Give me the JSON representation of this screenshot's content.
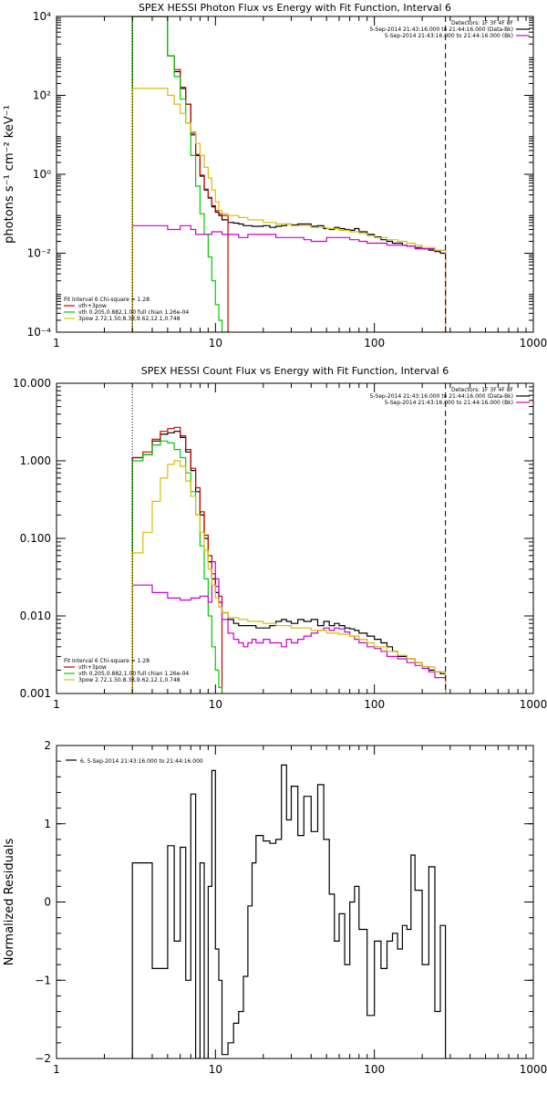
{
  "chart_data": [
    {
      "id": "photon",
      "type": "line",
      "title": "SPEX HESSI Photon Flux vs Energy with Fit Function, Interval 6",
      "ylabel": "photons s⁻¹ cm⁻² keV⁻¹",
      "xscale": "log",
      "yscale": "log",
      "xlim": [
        1,
        1000
      ],
      "ylim": [
        0.0001,
        10000
      ],
      "xticks": [
        {
          "v": 1,
          "t": "1"
        },
        {
          "v": 10,
          "t": "10"
        },
        {
          "v": 100,
          "t": "100"
        },
        {
          "v": 1000,
          "t": "1000"
        }
      ],
      "yticks": [
        {
          "v": 0.0001,
          "t": "10⁻⁴"
        },
        {
          "v": 0.01,
          "t": "10⁻²"
        },
        {
          "v": 1,
          "t": "10⁰"
        },
        {
          "v": 100,
          "t": "10²"
        },
        {
          "v": 10000,
          "t": "10⁴"
        }
      ],
      "vlines": [
        {
          "x": 3,
          "style": "dotted"
        },
        {
          "x": 280,
          "style": "dashed"
        }
      ],
      "legend_top": {
        "header": "Detectors: 1F 3F 4F 8F",
        "entries": [
          {
            "text": "5-Sep-2014 21:43:16.000 to 21:44:16.000 (Data-Bk)",
            "color": "#000000"
          },
          {
            "text": "5-Sep-2014 21:43:16.000 to 21:44:16.000 (Bk)",
            "color": "#cc00cc"
          }
        ]
      },
      "legend_bottom": {
        "header": "Fit Interval 6   Chi-square = 1.28",
        "entries": [
          {
            "text": "vth+3pow",
            "color": "#cc0000"
          },
          {
            "text": "vth 0.205,0.882,1.00  full chian 1.26e-04",
            "color": "#00cc00"
          },
          {
            "text": "3pow 2.72,1.50,8.38,9.62,12.1,0.748",
            "color": "#cccc00"
          }
        ]
      },
      "series": [
        {
          "color": "#000000",
          "edges": [
            3,
            4,
            5,
            5.5,
            6,
            6.5,
            7,
            7.5,
            8,
            8.5,
            9,
            9.5,
            10,
            10.5,
            11,
            12,
            13,
            14,
            15,
            16,
            17,
            18,
            20,
            22,
            24,
            26,
            28,
            30,
            33,
            36,
            40,
            44,
            48,
            52,
            56,
            60,
            65,
            70,
            75,
            80,
            90,
            100,
            110,
            120,
            130,
            140,
            150,
            160,
            170,
            180,
            200,
            220,
            240,
            260,
            280
          ],
          "values": [
            10000,
            10000,
            1000,
            400,
            150,
            60,
            10,
            3,
            0.9,
            0.4,
            0.25,
            0.15,
            0.11,
            0.09,
            0.07,
            0.06,
            0.058,
            0.055,
            0.05,
            0.05,
            0.048,
            0.048,
            0.05,
            0.045,
            0.048,
            0.05,
            0.055,
            0.052,
            0.055,
            0.055,
            0.048,
            0.05,
            0.042,
            0.04,
            0.045,
            0.042,
            0.04,
            0.038,
            0.042,
            0.035,
            0.03,
            0.026,
            0.022,
            0.02,
            0.018,
            0.018,
            0.016,
            0.015,
            0.015,
            0.014,
            0.013,
            0.012,
            0.011,
            0.01
          ]
        },
        {
          "color": "#cc0000",
          "edges": [
            3,
            4,
            5,
            5.5,
            6,
            6.5,
            7,
            7.5,
            8,
            8.5,
            9,
            9.5,
            10,
            10.5,
            11,
            12
          ],
          "values": [
            10000,
            10000,
            1000,
            450,
            160,
            60,
            11,
            3.2,
            0.95,
            0.42,
            0.26,
            0.16,
            0.12,
            0.1,
            0.09
          ]
        },
        {
          "color": "#00cc00",
          "edges": [
            3,
            4,
            5,
            5.5,
            6,
            6.5,
            7,
            7.5,
            8,
            8.5,
            9,
            9.5,
            10,
            10.5,
            11,
            12
          ],
          "values": [
            10000,
            10000,
            1000,
            300,
            80,
            20,
            3,
            0.5,
            0.1,
            0.03,
            0.008,
            0.002,
            0.0005,
            0.0002,
            8e-05
          ]
        },
        {
          "color": "#cc00cc",
          "edges": [
            3,
            4,
            5,
            6,
            7,
            7.5,
            8,
            8.5,
            9,
            9.5,
            10,
            11,
            12,
            14,
            16,
            18,
            20,
            24,
            28,
            32,
            36,
            40,
            50,
            60,
            70,
            80,
            90,
            100,
            120,
            140,
            160,
            180,
            200,
            240,
            280
          ],
          "values": [
            0.05,
            0.05,
            0.04,
            0.05,
            0.04,
            0.03,
            0.03,
            0.03,
            0.03,
            0.035,
            0.035,
            0.03,
            0.03,
            0.025,
            0.03,
            0.03,
            0.03,
            0.025,
            0.025,
            0.025,
            0.022,
            0.02,
            0.025,
            0.025,
            0.022,
            0.02,
            0.018,
            0.018,
            0.016,
            0.016,
            0.015,
            0.013,
            0.013,
            0.012
          ]
        },
        {
          "color": "#d4c000",
          "edges": [
            3,
            4,
            5,
            5.5,
            6,
            6.5,
            7,
            7.5,
            8,
            8.5,
            9,
            9.5,
            10,
            10.5,
            11,
            12,
            14,
            16,
            20,
            24,
            30,
            40,
            50,
            60,
            70,
            80,
            90,
            100,
            120,
            140,
            160,
            180,
            200,
            240,
            280
          ],
          "values": [
            150,
            150,
            100,
            60,
            35,
            20,
            12,
            6,
            3,
            1.5,
            0.8,
            0.4,
            0.2,
            0.12,
            0.1,
            0.09,
            0.08,
            0.07,
            0.06,
            0.055,
            0.05,
            0.045,
            0.042,
            0.038,
            0.035,
            0.032,
            0.028,
            0.025,
            0.022,
            0.02,
            0.018,
            0.016,
            0.014,
            0.012
          ]
        }
      ]
    },
    {
      "id": "count",
      "type": "line",
      "title": "SPEX HESSI Count Flux vs Energy with Fit Function, Interval 6",
      "ylabel": "",
      "xscale": "log",
      "yscale": "log",
      "xlim": [
        1,
        1000
      ],
      "ylim": [
        0.001,
        10
      ],
      "xticks": [
        {
          "v": 1,
          "t": "1"
        },
        {
          "v": 10,
          "t": "10"
        },
        {
          "v": 100,
          "t": "100"
        },
        {
          "v": 1000,
          "t": "1000"
        }
      ],
      "yticks": [
        {
          "v": 0.001,
          "t": "0.001"
        },
        {
          "v": 0.01,
          "t": "0.010"
        },
        {
          "v": 0.1,
          "t": "0.100"
        },
        {
          "v": 1,
          "t": "1.000"
        },
        {
          "v": 10,
          "t": "10.000"
        }
      ],
      "vlines": [
        {
          "x": 3,
          "style": "dotted"
        },
        {
          "x": 280,
          "style": "dashed"
        }
      ],
      "legend_top": {
        "header": "Detectors: 1F 3F 4F 8F",
        "entries": [
          {
            "text": "5-Sep-2014 21:43:16.000 to 21:44:16.000 (Data-Bk)",
            "color": "#000000"
          },
          {
            "text": "5-Sep-2014 21:43:16.000 to 21:44:16.000 (Bk)",
            "color": "#cc00cc"
          }
        ]
      },
      "legend_bottom": {
        "header": "Fit Interval 6   Chi-square = 1.28",
        "entries": [
          {
            "text": "vth+3pow",
            "color": "#cc0000"
          },
          {
            "text": "vth 0.205,0.882,1.00  full chian 1.26e-04",
            "color": "#00cc00"
          },
          {
            "text": "3pow 2.72,1.50,8.38,9.62,12.1,0.748",
            "color": "#cccc00"
          }
        ]
      },
      "series": [
        {
          "color": "#000000",
          "edges": [
            3,
            3.5,
            4,
            4.5,
            5,
            5.5,
            6,
            6.5,
            7,
            7.5,
            8,
            8.5,
            9,
            9.5,
            10,
            10.5,
            11,
            12,
            13,
            14,
            16,
            18,
            20,
            22,
            24,
            26,
            28,
            30,
            33,
            36,
            40,
            44,
            48,
            52,
            56,
            60,
            65,
            70,
            75,
            80,
            90,
            100,
            110,
            120,
            130,
            140,
            160,
            180,
            200,
            220,
            240,
            260,
            280
          ],
          "values": [
            1.1,
            1.2,
            1.8,
            2.2,
            2.3,
            2.4,
            2.0,
            1.3,
            0.75,
            0.4,
            0.2,
            0.1,
            0.05,
            0.03,
            0.02,
            0.015,
            0.011,
            0.009,
            0.008,
            0.0075,
            0.0075,
            0.007,
            0.007,
            0.0075,
            0.0085,
            0.009,
            0.0085,
            0.008,
            0.009,
            0.0085,
            0.009,
            0.0075,
            0.0085,
            0.0075,
            0.008,
            0.0075,
            0.007,
            0.0068,
            0.0065,
            0.006,
            0.0055,
            0.005,
            0.0045,
            0.004,
            0.0035,
            0.003,
            0.0028,
            0.0025,
            0.0022,
            0.002,
            0.0019,
            0.0018
          ]
        },
        {
          "color": "#cc0000",
          "edges": [
            3,
            3.5,
            4,
            4.5,
            5,
            5.5,
            6,
            6.5,
            7,
            7.5,
            8,
            8.5,
            9,
            9.5,
            10,
            10.5,
            11
          ],
          "values": [
            1.1,
            1.3,
            1.9,
            2.4,
            2.6,
            2.7,
            2.1,
            1.4,
            0.8,
            0.45,
            0.22,
            0.11,
            0.06,
            0.035,
            0.024,
            0.018
          ]
        },
        {
          "color": "#00cc00",
          "edges": [
            3,
            3.5,
            4,
            4.5,
            5,
            5.5,
            6,
            6.5,
            7,
            7.5,
            8,
            8.5,
            9,
            9.5,
            10,
            10.5,
            11
          ],
          "values": [
            1.0,
            1.2,
            1.6,
            1.8,
            1.7,
            1.4,
            1.1,
            0.7,
            0.4,
            0.2,
            0.08,
            0.03,
            0.01,
            0.004,
            0.002,
            0.0012
          ]
        },
        {
          "color": "#cc00cc",
          "edges": [
            3,
            4,
            5,
            6,
            7,
            8,
            9,
            9.5,
            10,
            10.5,
            11,
            12,
            13,
            14,
            15,
            16,
            17,
            18,
            20,
            22,
            24,
            26,
            28,
            30,
            33,
            36,
            40,
            44,
            48,
            52,
            56,
            60,
            65,
            70,
            75,
            80,
            90,
            100,
            110,
            120,
            140,
            160,
            180,
            200,
            220,
            240,
            280
          ],
          "values": [
            0.025,
            0.02,
            0.017,
            0.016,
            0.017,
            0.018,
            0.015,
            0.05,
            0.03,
            0.015,
            0.009,
            0.006,
            0.005,
            0.0045,
            0.004,
            0.0045,
            0.005,
            0.0045,
            0.005,
            0.0045,
            0.0045,
            0.004,
            0.005,
            0.0045,
            0.005,
            0.0055,
            0.006,
            0.0065,
            0.007,
            0.0065,
            0.007,
            0.0068,
            0.0062,
            0.0055,
            0.005,
            0.0045,
            0.004,
            0.0038,
            0.0035,
            0.003,
            0.0028,
            0.0025,
            0.0023,
            0.0021,
            0.0019,
            0.0016
          ]
        },
        {
          "color": "#d4c000",
          "edges": [
            3,
            3.5,
            4,
            4.5,
            5,
            5.5,
            6,
            6.5,
            7,
            7.5,
            8,
            8.5,
            9,
            9.5,
            10,
            10.5,
            11,
            12,
            14,
            16,
            20,
            24,
            30,
            40,
            50,
            60,
            70,
            80,
            90,
            100,
            120,
            140,
            160,
            180,
            200,
            240,
            280
          ],
          "values": [
            0.065,
            0.12,
            0.3,
            0.6,
            0.9,
            1.0,
            0.85,
            0.55,
            0.35,
            0.2,
            0.12,
            0.07,
            0.04,
            0.025,
            0.017,
            0.013,
            0.011,
            0.0095,
            0.009,
            0.0085,
            0.008,
            0.0075,
            0.007,
            0.0065,
            0.006,
            0.0058,
            0.0055,
            0.005,
            0.0045,
            0.004,
            0.0035,
            0.0031,
            0.0028,
            0.0025,
            0.0022,
            0.0019
          ]
        }
      ]
    },
    {
      "id": "resid",
      "type": "line",
      "title": "",
      "ylabel": "Normalized Residuals",
      "xscale": "log",
      "yscale": "linear",
      "xlim": [
        1,
        1000
      ],
      "ylim": [
        -2,
        2
      ],
      "xticks": [
        {
          "v": 1,
          "t": "1"
        },
        {
          "v": 10,
          "t": "10"
        },
        {
          "v": 100,
          "t": "100"
        },
        {
          "v": 1000,
          "t": "1000"
        }
      ],
      "yticks": [
        {
          "v": -2,
          "t": "−2"
        },
        {
          "v": -1,
          "t": "−1"
        },
        {
          "v": 0,
          "t": "0"
        },
        {
          "v": 1,
          "t": "1"
        },
        {
          "v": 2,
          "t": "2"
        }
      ],
      "vlines": [],
      "legend_top": {
        "header": "",
        "entries": [
          {
            "text": "6, 5-Sep-2014 21:43:16.000 to 21:44:16.000",
            "color": "#000000"
          }
        ]
      },
      "legend_bottom": null,
      "series": [
        {
          "color": "#000000",
          "edges": [
            3,
            4,
            5,
            5.5,
            6,
            6.5,
            7,
            7.5,
            8,
            8.5,
            9,
            9.5,
            10,
            10.5,
            11,
            12,
            13,
            14,
            15,
            16,
            17,
            18,
            20,
            22,
            24,
            26,
            28,
            30,
            33,
            36,
            40,
            44,
            48,
            52,
            56,
            60,
            65,
            70,
            75,
            80,
            90,
            100,
            110,
            120,
            130,
            140,
            150,
            160,
            170,
            180,
            200,
            220,
            240,
            260,
            280
          ],
          "values": [
            0.5,
            -0.85,
            0.72,
            -0.5,
            0.7,
            -1.0,
            1.38,
            -2.0,
            0.5,
            -2.0,
            0.2,
            1.68,
            -0.6,
            -1.0,
            -1.95,
            -1.8,
            -1.55,
            -1.4,
            -0.95,
            -0.05,
            0.5,
            0.85,
            0.78,
            0.75,
            0.8,
            1.75,
            1.05,
            1.48,
            0.85,
            1.35,
            0.9,
            1.5,
            0.8,
            0.1,
            -0.5,
            -0.15,
            -0.8,
            0.0,
            0.2,
            -0.35,
            -1.45,
            -0.5,
            -0.85,
            -0.5,
            -0.4,
            -0.6,
            -0.3,
            -0.35,
            0.6,
            0.15,
            -0.8,
            0.45,
            -1.4,
            -0.3
          ]
        }
      ]
    }
  ]
}
